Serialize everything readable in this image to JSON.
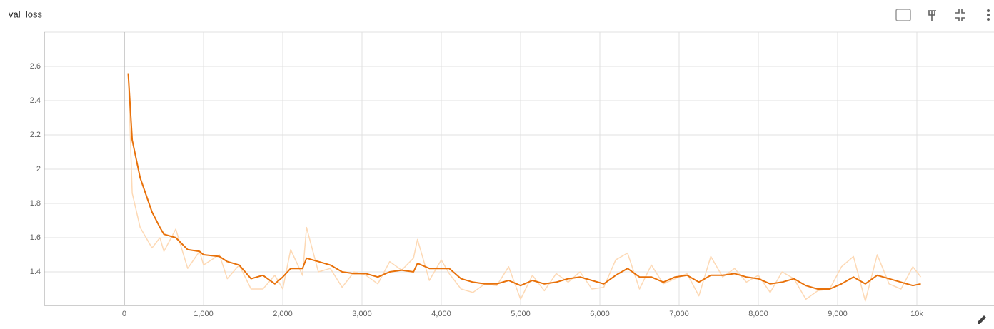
{
  "chart_data": {
    "type": "line",
    "title": "val_loss",
    "x": [
      50,
      100,
      200,
      350,
      450,
      500,
      650,
      800,
      950,
      1000,
      1200,
      1300,
      1450,
      1600,
      1750,
      1900,
      2000,
      2100,
      2250,
      2300,
      2450,
      2600,
      2750,
      2900,
      3050,
      3200,
      3350,
      3500,
      3650,
      3700,
      3850,
      4000,
      4100,
      4250,
      4400,
      4550,
      4700,
      4850,
      5000,
      5150,
      5300,
      5450,
      5600,
      5750,
      5900,
      6050,
      6200,
      6350,
      6500,
      6650,
      6800,
      6950,
      7100,
      7250,
      7400,
      7550,
      7700,
      7850,
      8000,
      8150,
      8300,
      8450,
      8600,
      8750,
      8900,
      9050,
      9200,
      9350,
      9500,
      9650,
      9800,
      9950,
      10050
    ],
    "series": [
      {
        "color": "#fdd9b5",
        "values": [
          2.56,
          1.86,
          1.66,
          1.54,
          1.6,
          1.52,
          1.65,
          1.42,
          1.52,
          1.44,
          1.5,
          1.36,
          1.44,
          1.3,
          1.3,
          1.38,
          1.3,
          1.53,
          1.38,
          1.66,
          1.4,
          1.42,
          1.31,
          1.4,
          1.38,
          1.33,
          1.46,
          1.41,
          1.48,
          1.59,
          1.35,
          1.47,
          1.39,
          1.3,
          1.28,
          1.33,
          1.32,
          1.43,
          1.24,
          1.38,
          1.29,
          1.39,
          1.34,
          1.4,
          1.3,
          1.31,
          1.47,
          1.51,
          1.3,
          1.44,
          1.33,
          1.36,
          1.39,
          1.26,
          1.49,
          1.37,
          1.42,
          1.34,
          1.38,
          1.28,
          1.4,
          1.36,
          1.24,
          1.29,
          1.3,
          1.43,
          1.49,
          1.23,
          1.5,
          1.33,
          1.3,
          1.43,
          1.37
        ]
      },
      {
        "color": "#e8710a",
        "values": [
          2.56,
          2.17,
          1.95,
          1.75,
          1.66,
          1.62,
          1.6,
          1.53,
          1.52,
          1.5,
          1.49,
          1.46,
          1.44,
          1.36,
          1.38,
          1.33,
          1.37,
          1.42,
          1.42,
          1.48,
          1.46,
          1.44,
          1.4,
          1.39,
          1.39,
          1.37,
          1.4,
          1.41,
          1.4,
          1.45,
          1.42,
          1.42,
          1.42,
          1.36,
          1.34,
          1.33,
          1.33,
          1.35,
          1.32,
          1.35,
          1.33,
          1.34,
          1.36,
          1.37,
          1.35,
          1.33,
          1.38,
          1.42,
          1.37,
          1.37,
          1.34,
          1.37,
          1.38,
          1.34,
          1.38,
          1.38,
          1.39,
          1.37,
          1.36,
          1.33,
          1.34,
          1.36,
          1.32,
          1.3,
          1.3,
          1.33,
          1.37,
          1.33,
          1.38,
          1.36,
          1.34,
          1.32,
          1.33
        ]
      }
    ],
    "xlim": [
      -1009,
      10973
    ],
    "xticks": [
      0,
      {
        "value": 1000,
        "label": "1,000"
      },
      {
        "value": 2000,
        "label": "2,000"
      },
      {
        "value": 3000,
        "label": "3,000"
      },
      {
        "value": 4000,
        "label": "4,000"
      },
      {
        "value": 5000,
        "label": "5,000"
      },
      {
        "value": 6000,
        "label": "6,000"
      },
      {
        "value": 7000,
        "label": "7,000"
      },
      {
        "value": 8000,
        "label": "8,000"
      },
      {
        "value": 9000,
        "label": "9,000"
      },
      {
        "value": 10000,
        "label": "10k"
      }
    ],
    "ylim": [
      1.204,
      2.8
    ],
    "yticks": [
      1.4,
      1.6,
      1.8,
      2,
      2.2,
      2.4,
      2.6
    ],
    "grid": true
  }
}
